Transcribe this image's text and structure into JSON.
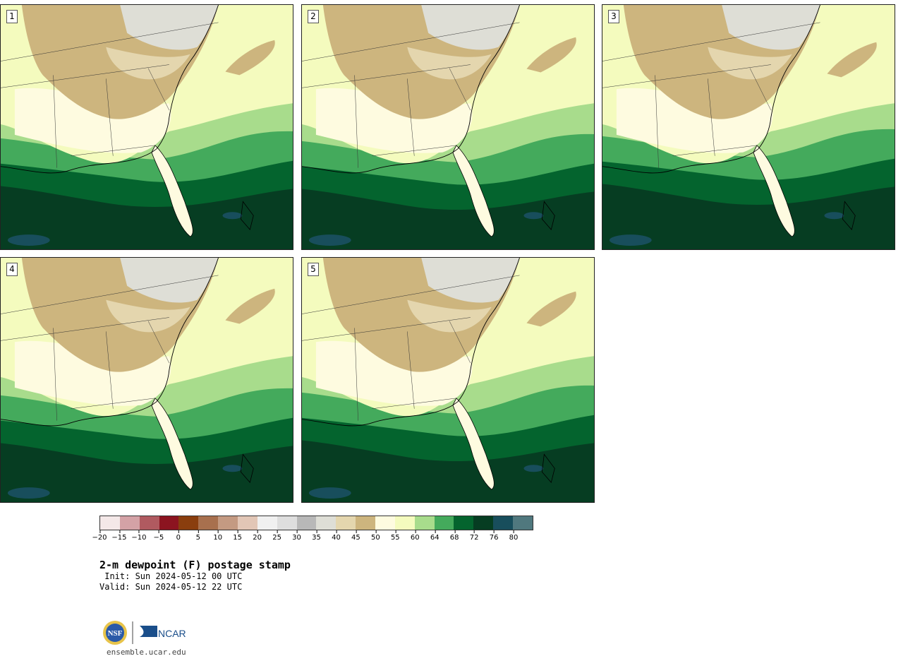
{
  "panels": [
    {
      "label": "1"
    },
    {
      "label": "2"
    },
    {
      "label": "3"
    },
    {
      "label": "4"
    },
    {
      "label": "5"
    }
  ],
  "colorbar": {
    "colors": [
      "#f4e8e8",
      "#d4a2a6",
      "#b05a60",
      "#8c1420",
      "#8a3e0e",
      "#a8704e",
      "#c49a82",
      "#e2c6b6",
      "#f0f0f0",
      "#dedede",
      "#b8b8b8",
      "#deded6",
      "#e4d6ae",
      "#cdb57e",
      "#fefbe0",
      "#f4fbbe",
      "#a8dc8c",
      "#44aa5c",
      "#04642e",
      "#063d22",
      "#184e5c",
      "#50787e"
    ],
    "tick_labels": [
      "−20",
      "−15",
      "−10",
      "−5",
      "0",
      "5",
      "10",
      "15",
      "20",
      "25",
      "30",
      "35",
      "40",
      "45",
      "50",
      "55",
      "60",
      "64",
      "68",
      "72",
      "76",
      "80"
    ]
  },
  "field_colors": {
    "dry": "#cdb57e",
    "very_dry": "#deded6",
    "mid": "#e4d6ae",
    "pale": "#fefbe0",
    "light": "#f4fbbe",
    "green1": "#a8dc8c",
    "green2": "#44aa5c",
    "green3": "#04642e",
    "green4": "#063d22",
    "teal": "#184e5c"
  },
  "title": "2-m dewpoint (F) postage stamp",
  "init": " Init: Sun 2024-05-12 00 UTC",
  "valid": "Valid: Sun 2024-05-12 22 UTC",
  "logos": {
    "nsf": "NSF",
    "ncar": "NCAR"
  },
  "url": "ensemble.ucar.edu"
}
